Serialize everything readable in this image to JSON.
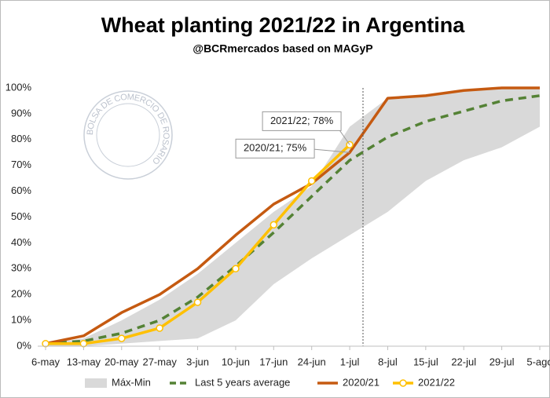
{
  "chart_data": {
    "type": "line",
    "title": "Wheat planting 2021/22 in Argentina",
    "subtitle": "@BCRmercados based on MAGyP",
    "watermark": "BOLSA DE COMERCIO DE ROSARIO",
    "categories": [
      "6-may",
      "13-may",
      "20-may",
      "27-may",
      "3-jun",
      "10-jun",
      "17-jun",
      "24-jun",
      "1-jul",
      "8-jul",
      "15-jul",
      "22-jul",
      "29-jul",
      "5-ago"
    ],
    "range": {
      "name": "Máx-Min",
      "color": "#d9d9d9",
      "max": [
        1,
        3,
        10,
        18,
        28,
        40,
        52,
        62,
        85,
        96,
        97,
        99,
        100,
        100
      ],
      "min": [
        0,
        0,
        1,
        2,
        3,
        10,
        24,
        34,
        43,
        52,
        64,
        72,
        77,
        85
      ]
    },
    "series": [
      {
        "name": "Last 5 years average",
        "color": "#548235",
        "dashed": true,
        "values": [
          1,
          2,
          5,
          10,
          19,
          31,
          44,
          58,
          72,
          81,
          87,
          91,
          95,
          97
        ]
      },
      {
        "name": "2020/21",
        "color": "#c55a11",
        "values": [
          1,
          4,
          13,
          20,
          30,
          43,
          55,
          63,
          75,
          96,
          97,
          99,
          100,
          100
        ]
      },
      {
        "name": "2021/22",
        "color": "#ffc000",
        "markers": true,
        "values": [
          1,
          1,
          3,
          7,
          17,
          30,
          47,
          64,
          78,
          null,
          null,
          null,
          null,
          null
        ]
      }
    ],
    "annotations": [
      {
        "text": "2021/22; 78%",
        "series": 2,
        "index": 8
      },
      {
        "text": "2020/21; 75%",
        "series": 1,
        "index": 8
      }
    ],
    "ylim": [
      0,
      100
    ],
    "yticks": [
      {
        "value": 0,
        "label": "0%"
      },
      {
        "value": 10,
        "label": "10%"
      },
      {
        "value": 20,
        "label": "20%"
      },
      {
        "value": 30,
        "label": "30%"
      },
      {
        "value": 40,
        "label": "40%"
      },
      {
        "value": 50,
        "label": "50%"
      },
      {
        "value": 60,
        "label": "60%"
      },
      {
        "value": 70,
        "label": "70%"
      },
      {
        "value": 80,
        "label": "80%"
      },
      {
        "value": 90,
        "label": "90%"
      },
      {
        "value": 100,
        "label": "100%"
      }
    ],
    "legend": "bottom"
  }
}
